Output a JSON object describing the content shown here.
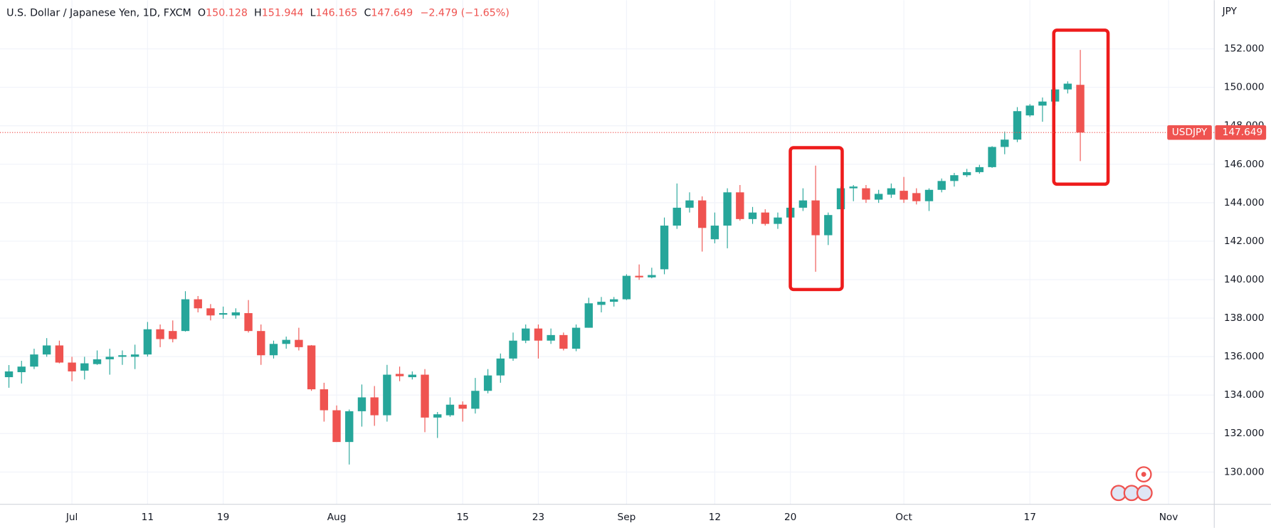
{
  "chart_data": {
    "type": "candlestick",
    "title": "U.S. Dollar / Japanese Yen, 1D, FXCM",
    "header_fields": [
      {
        "label": "O",
        "value": "150.128"
      },
      {
        "label": "H",
        "value": "151.944"
      },
      {
        "label": "L",
        "value": "146.165"
      },
      {
        "label": "C",
        "value": "147.649"
      }
    ],
    "change": "−2.479 (−1.65%)",
    "y_unit": "JPY",
    "symbol": "USDJPY",
    "up_color": "#26a69a",
    "down_color": "#ef5350",
    "grid": true,
    "categories": [
      null,
      null,
      null,
      null,
      null,
      "Jul",
      null,
      null,
      null,
      null,
      null,
      "11",
      null,
      null,
      null,
      null,
      null,
      "19",
      null,
      null,
      null,
      null,
      null,
      null,
      null,
      null,
      "Aug",
      null,
      null,
      null,
      null,
      null,
      null,
      null,
      null,
      null,
      "15",
      null,
      null,
      null,
      null,
      null,
      "23",
      null,
      null,
      null,
      null,
      null,
      null,
      "Sep",
      null,
      null,
      null,
      null,
      null,
      null,
      "12",
      null,
      null,
      null,
      null,
      null,
      "20",
      null,
      null,
      null,
      null,
      null,
      null,
      null,
      null,
      "Oct",
      null,
      null,
      null,
      null,
      null,
      null,
      null,
      null,
      null,
      "17",
      null,
      null,
      null,
      null,
      null,
      null,
      null,
      null,
      null,
      null,
      "Nov"
    ],
    "open": [
      134.93,
      135.19,
      135.48,
      136.11,
      136.58,
      135.69,
      135.27,
      135.61,
      135.86,
      135.99,
      135.99,
      136.11,
      137.42,
      137.33,
      137.33,
      138.98,
      138.51,
      138.18,
      138.14,
      138.26,
      137.33,
      136.07,
      136.66,
      136.87,
      136.58,
      134.3,
      133.21,
      131.56,
      133.16,
      133.88,
      132.95,
      135.1,
      134.93,
      135.06,
      132.83,
      132.95,
      133.5,
      133.29,
      134.22,
      135.02,
      135.9,
      136.83,
      137.46,
      136.83,
      137.12,
      136.41,
      137.5,
      138.69,
      138.85,
      138.98,
      140.2,
      140.12,
      140.54,
      142.81,
      143.74,
      144.12,
      142.1,
      142.81,
      144.54,
      143.15,
      143.49,
      142.9,
      143.23,
      143.74,
      144.12,
      142.31,
      143.66,
      144.75,
      144.75,
      144.16,
      144.42,
      144.62,
      144.5,
      144.08,
      144.67,
      145.13,
      145.43,
      145.59,
      145.85,
      146.9,
      147.28,
      148.54,
      149.05,
      149.26,
      149.89,
      150.128,
      null,
      null,
      null,
      null,
      null,
      null,
      null
    ],
    "high": [
      135.56,
      135.78,
      136.41,
      136.96,
      136.83,
      135.99,
      135.99,
      136.32,
      136.41,
      136.32,
      136.62,
      137.8,
      137.67,
      137.88,
      139.4,
      139.15,
      138.73,
      138.6,
      138.51,
      138.94,
      137.67,
      136.83,
      137.04,
      137.5,
      136.6,
      134.64,
      133.46,
      133.25,
      134.55,
      134.47,
      135.57,
      135.48,
      135.23,
      135.35,
      133.12,
      133.88,
      133.67,
      134.89,
      135.35,
      136.16,
      137.25,
      137.67,
      137.67,
      137.46,
      137.25,
      137.67,
      139.06,
      139.1,
      139.1,
      140.28,
      140.79,
      140.62,
      143.23,
      145.0,
      144.54,
      144.33,
      143.49,
      144.75,
      144.92,
      143.78,
      143.66,
      143.49,
      144.0,
      144.75,
      145.93,
      143.49,
      144.84,
      144.92,
      144.92,
      144.67,
      145.0,
      145.34,
      144.75,
      144.75,
      145.26,
      145.55,
      145.76,
      145.97,
      146.94,
      147.7,
      148.97,
      149.13,
      149.47,
      149.98,
      150.31,
      151.944,
      null,
      null,
      null,
      null,
      null,
      null,
      null
    ],
    "low": [
      134.38,
      134.6,
      135.35,
      135.99,
      135.65,
      134.72,
      134.81,
      135.57,
      135.06,
      135.57,
      135.35,
      136.0,
      136.49,
      136.74,
      137.3,
      138.3,
      137.88,
      137.97,
      137.97,
      137.25,
      135.57,
      135.9,
      136.41,
      136.32,
      134.22,
      132.62,
      131.56,
      130.39,
      132.36,
      132.4,
      132.62,
      134.72,
      134.81,
      132.07,
      131.77,
      132.87,
      132.62,
      133.04,
      134.09,
      134.64,
      135.78,
      136.7,
      135.9,
      136.66,
      136.32,
      136.28,
      137.5,
      138.3,
      138.6,
      138.94,
      139.99,
      140.07,
      140.28,
      142.64,
      143.49,
      141.46,
      141.89,
      141.63,
      143.07,
      142.9,
      142.81,
      142.64,
      143.15,
      143.57,
      140.41,
      141.8,
      143.66,
      144.08,
      143.99,
      143.99,
      144.25,
      143.99,
      143.91,
      143.57,
      144.54,
      144.84,
      145.34,
      145.51,
      145.81,
      146.52,
      147.15,
      148.46,
      148.21,
      149.05,
      149.68,
      146.165,
      null,
      null,
      null,
      null,
      null,
      null,
      null
    ],
    "close": [
      135.23,
      135.48,
      136.11,
      136.58,
      135.69,
      135.23,
      135.65,
      135.86,
      135.99,
      136.07,
      136.11,
      137.42,
      136.91,
      136.91,
      138.98,
      138.51,
      138.14,
      138.26,
      138.3,
      137.33,
      136.07,
      136.66,
      136.87,
      136.49,
      134.3,
      133.21,
      131.56,
      133.16,
      133.88,
      132.95,
      135.06,
      134.98,
      135.06,
      132.83,
      133.0,
      133.5,
      133.29,
      134.22,
      135.02,
      135.9,
      136.83,
      137.46,
      136.83,
      137.12,
      136.41,
      137.5,
      138.77,
      138.85,
      138.98,
      140.2,
      140.12,
      140.24,
      142.81,
      143.74,
      144.12,
      142.69,
      142.81,
      144.54,
      143.15,
      143.49,
      142.9,
      143.23,
      143.74,
      144.12,
      142.31,
      143.36,
      144.75,
      144.84,
      144.16,
      144.46,
      144.75,
      144.16,
      144.08,
      144.67,
      145.13,
      145.43,
      145.59,
      145.85,
      146.9,
      147.28,
      148.76,
      149.05,
      149.26,
      149.89,
      150.19,
      147.649,
      null,
      null,
      null,
      null,
      null,
      null,
      null
    ],
    "ylim": [
      128.32,
      154.53
    ],
    "yticks": [
      {
        "value": 130,
        "label": "130.000"
      },
      {
        "value": 132,
        "label": "132.000"
      },
      {
        "value": 134,
        "label": "134.000"
      },
      {
        "value": 136,
        "label": "136.000"
      },
      {
        "value": 138,
        "label": "138.000"
      },
      {
        "value": 140,
        "label": "140.000"
      },
      {
        "value": 142,
        "label": "142.000"
      },
      {
        "value": 144,
        "label": "144.000"
      },
      {
        "value": 146,
        "label": "146.000"
      },
      {
        "value": 148,
        "label": "148.000"
      },
      {
        "value": 150,
        "label": "150.000"
      },
      {
        "value": 152,
        "label": "152.000"
      }
    ]
  }
}
